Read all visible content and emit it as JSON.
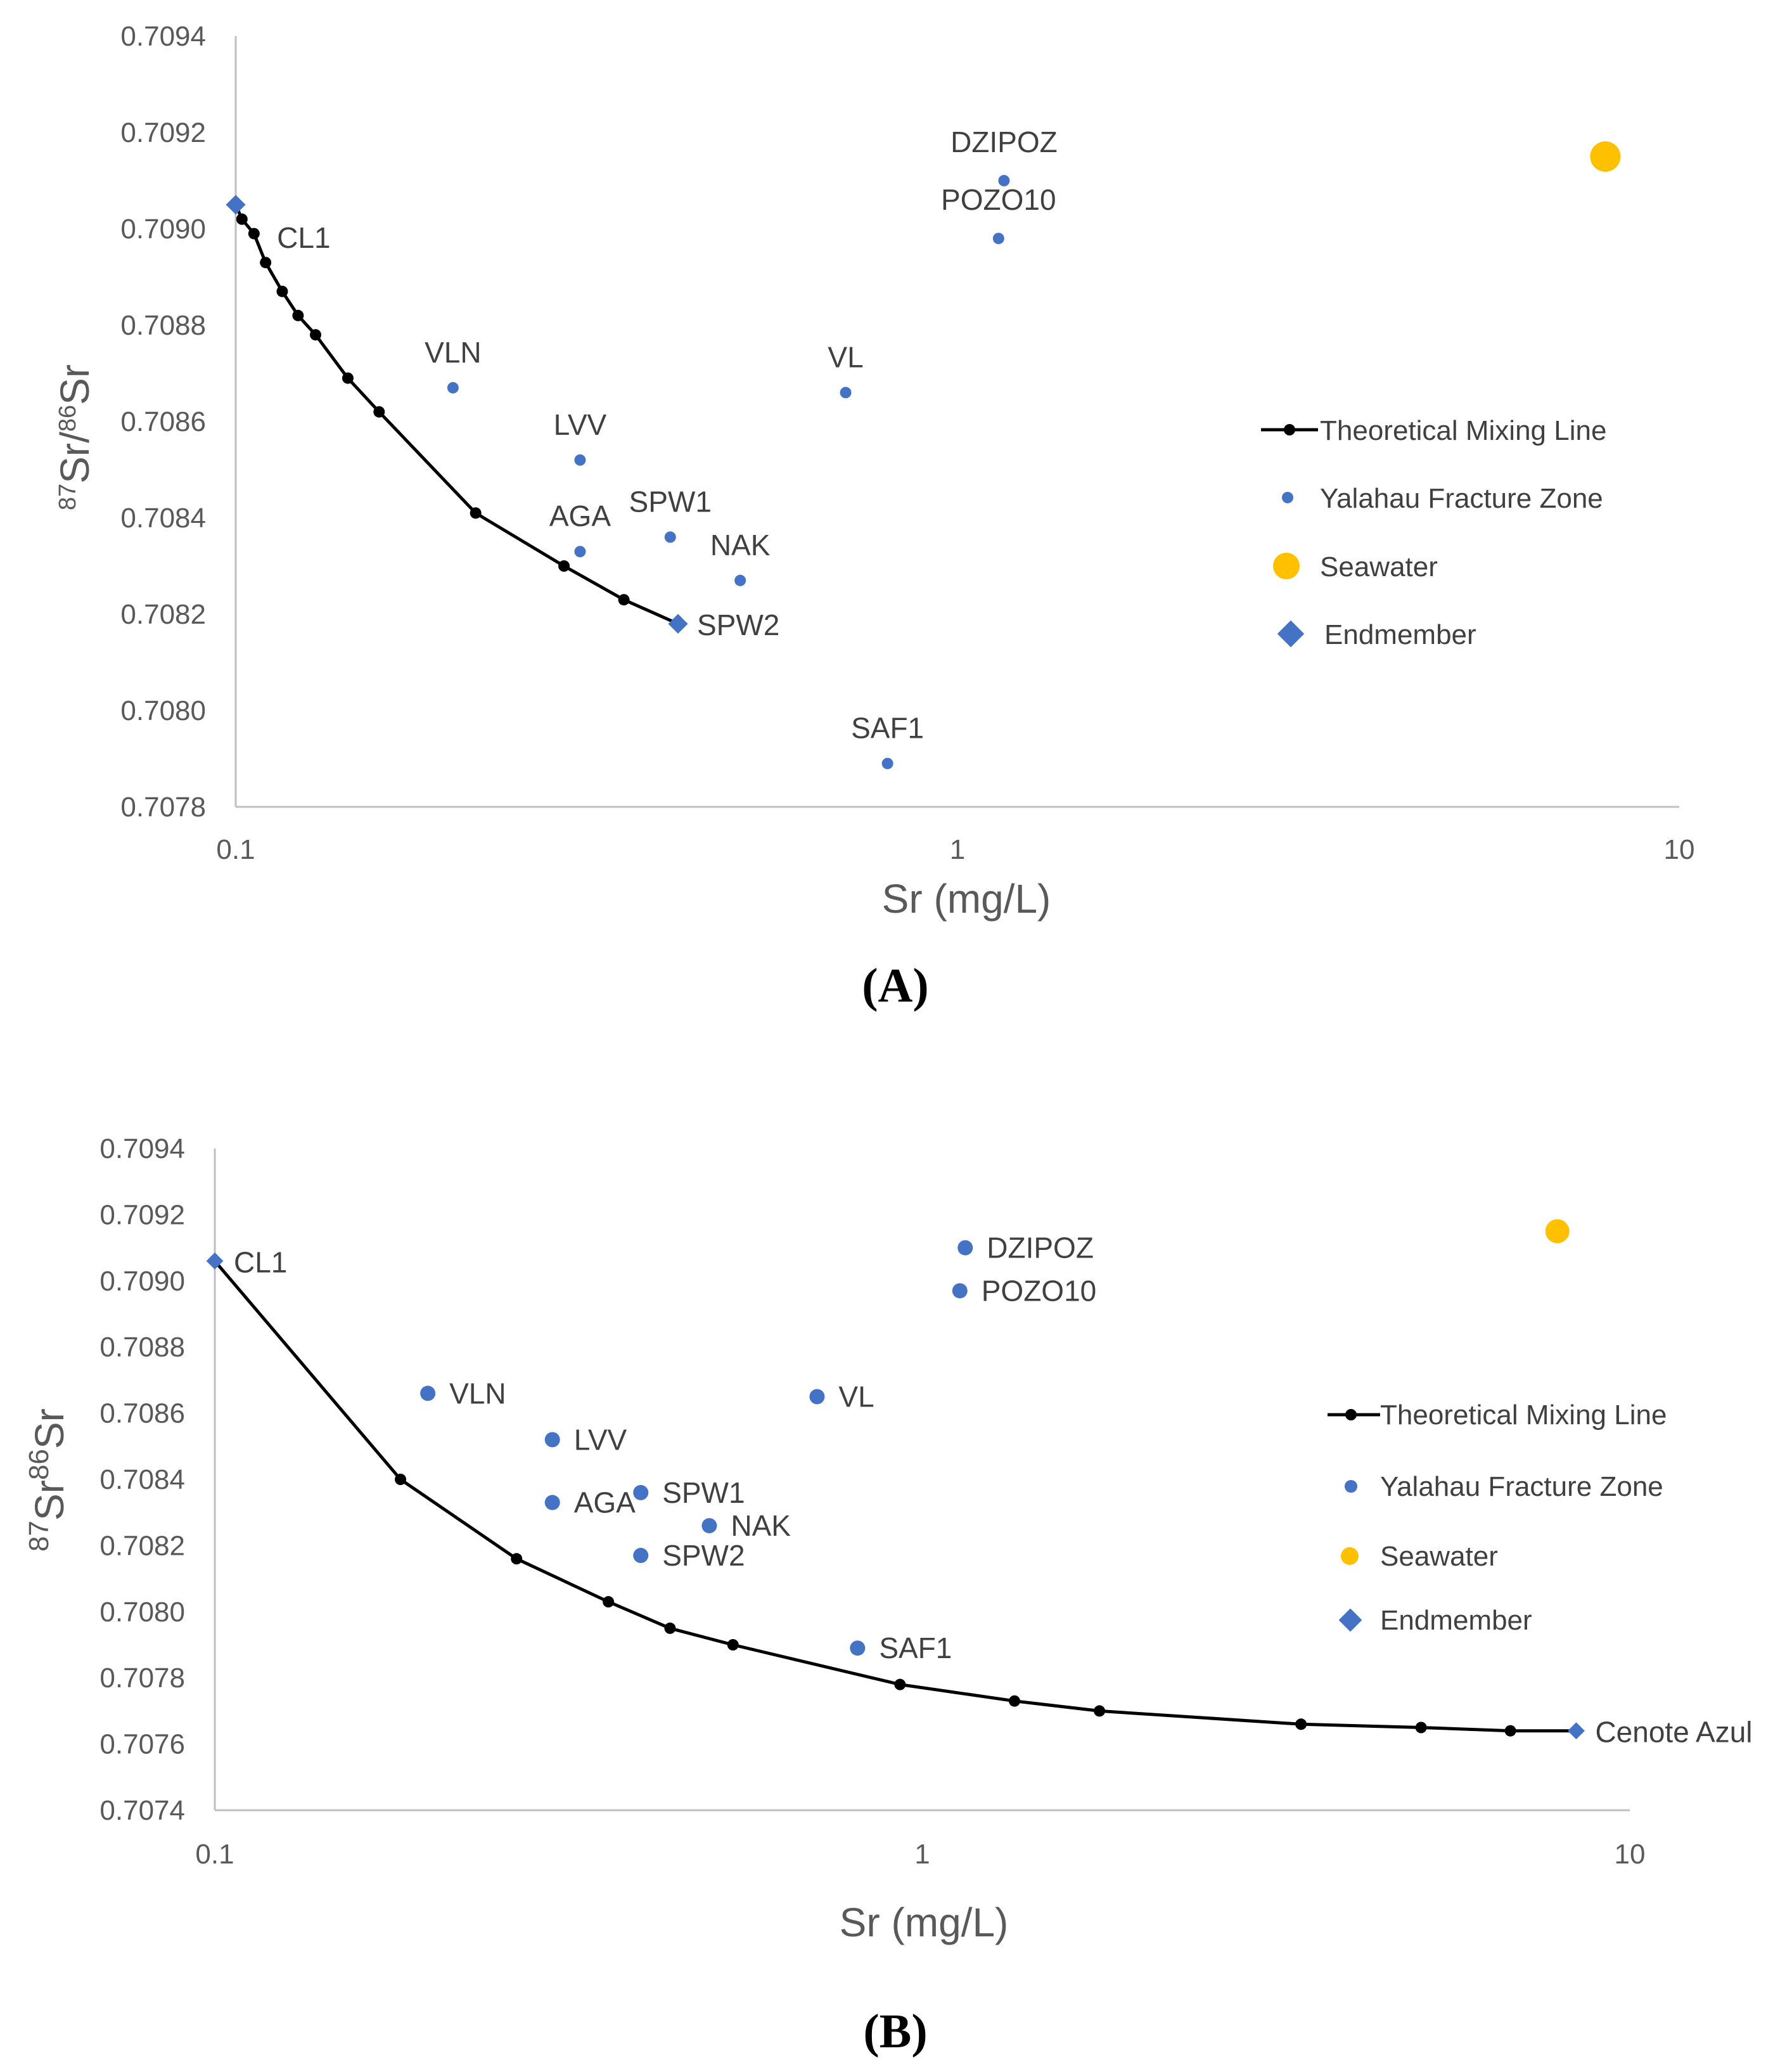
{
  "chart_data": [
    {
      "type": "scatter",
      "panel": "(A)",
      "xlabel": "Sr (mg/L)",
      "ylabel_sup1": "87",
      "ylabel_mid": "Sr/",
      "ylabel_sup2": "86",
      "ylabel_end": "Sr",
      "x_scale": "log",
      "xlim": [
        0.1,
        10
      ],
      "ylim": [
        0.7078,
        0.7094
      ],
      "x_ticks": [
        "0.1",
        "1",
        "10"
      ],
      "y_ticks": [
        "0.7078",
        "0.7080",
        "0.7082",
        "0.7084",
        "0.7086",
        "0.7088",
        "0.7090",
        "0.7092",
        "0.7094"
      ],
      "grid": false,
      "legend_position": "right",
      "legend": [
        "Theoretical Mixing Line",
        "Yalahau Fracture Zone",
        "Seawater",
        "Endmember"
      ],
      "mixing_line": [
        [
          0.1,
          0.70905
        ],
        [
          0.102,
          0.70902
        ],
        [
          0.106,
          0.70899
        ],
        [
          0.11,
          0.70893
        ],
        [
          0.116,
          0.70887
        ],
        [
          0.122,
          0.70882
        ],
        [
          0.129,
          0.70878
        ],
        [
          0.143,
          0.70869
        ],
        [
          0.158,
          0.70862
        ],
        [
          0.215,
          0.70841
        ],
        [
          0.285,
          0.7083
        ],
        [
          0.345,
          0.70823
        ],
        [
          0.41,
          0.70818
        ]
      ],
      "yalahau": [
        {
          "label": "DZIPOZ",
          "x": 1.16,
          "y": 0.7091
        },
        {
          "label": "POZO10",
          "x": 1.14,
          "y": 0.70898
        },
        {
          "label": "VLN",
          "x": 0.2,
          "y": 0.70867
        },
        {
          "label": "VL",
          "x": 0.7,
          "y": 0.70866
        },
        {
          "label": "LVV",
          "x": 0.3,
          "y": 0.70852
        },
        {
          "label": "SPW1",
          "x": 0.4,
          "y": 0.70836
        },
        {
          "label": "AGA",
          "x": 0.3,
          "y": 0.70833
        },
        {
          "label": "NAK",
          "x": 0.5,
          "y": 0.70827
        },
        {
          "label": "SAF1",
          "x": 0.8,
          "y": 0.70789
        }
      ],
      "seawater": [
        {
          "label": "",
          "x": 7.9,
          "y": 0.70915
        }
      ],
      "endmembers": [
        {
          "label": "",
          "x": 0.1,
          "y": 0.70905
        },
        {
          "label": "SPW2",
          "x": 0.41,
          "y": 0.70818
        }
      ],
      "extra_labels": [
        {
          "text": "CL1",
          "x": 0.12,
          "y": 0.70895
        }
      ]
    },
    {
      "type": "scatter",
      "panel": "(B)",
      "xlabel": "Sr (mg/L)",
      "ylabel_sup1": "87",
      "ylabel_mid": "Sr",
      "ylabel_sup2": "86",
      "ylabel_end": "Sr",
      "x_scale": "log",
      "xlim": [
        0.1,
        10
      ],
      "ylim": [
        0.7074,
        0.7094
      ],
      "x_ticks": [
        "0.1",
        "1",
        "10"
      ],
      "y_ticks": [
        "0.7074",
        "0.7076",
        "0.7078",
        "0.7080",
        "0.7082",
        "0.7084",
        "0.7086",
        "0.7088",
        "0.7090",
        "0.7092",
        "0.7094"
      ],
      "grid": false,
      "legend_position": "right",
      "legend": [
        "Theoretical Mixing Line",
        "Yalahau Fracture Zone",
        "Seawater",
        "Endmember"
      ],
      "mixing_line": [
        [
          0.1,
          0.70906
        ],
        [
          0.183,
          0.7084
        ],
        [
          0.267,
          0.70816
        ],
        [
          0.36,
          0.70803
        ],
        [
          0.44,
          0.70795
        ],
        [
          0.54,
          0.7079
        ],
        [
          0.93,
          0.70778
        ],
        [
          1.35,
          0.70773
        ],
        [
          1.78,
          0.7077
        ],
        [
          3.43,
          0.70766
        ],
        [
          5.07,
          0.70765
        ],
        [
          6.78,
          0.70764
        ],
        [
          8.4,
          0.70764
        ]
      ],
      "yalahau": [
        {
          "label": "DZIPOZ",
          "x": 1.15,
          "y": 0.7091
        },
        {
          "label": "POZO10",
          "x": 1.13,
          "y": 0.70897
        },
        {
          "label": "VLN",
          "x": 0.2,
          "y": 0.70866
        },
        {
          "label": "VL",
          "x": 0.71,
          "y": 0.70865
        },
        {
          "label": "LVV",
          "x": 0.3,
          "y": 0.70852
        },
        {
          "label": "AGA",
          "x": 0.3,
          "y": 0.70833
        },
        {
          "label": "SPW1",
          "x": 0.4,
          "y": 0.70836
        },
        {
          "label": "NAK",
          "x": 0.5,
          "y": 0.70826
        },
        {
          "label": "SPW2",
          "x": 0.4,
          "y": 0.70817
        },
        {
          "label": "SAF1",
          "x": 0.81,
          "y": 0.70789
        }
      ],
      "seawater": [
        {
          "label": "",
          "x": 7.9,
          "y": 0.70915
        }
      ],
      "endmembers": [
        {
          "label": "CL1",
          "x": 0.1,
          "y": 0.70906
        },
        {
          "label": "Cenote Azul",
          "x": 8.4,
          "y": 0.70764
        }
      ],
      "extra_labels": []
    }
  ],
  "colors": {
    "line": "#000000",
    "yalahau": "#4472C4",
    "seawater": "#FFC000",
    "endmember": "#4472C4",
    "axis": "#BFBFBF"
  }
}
